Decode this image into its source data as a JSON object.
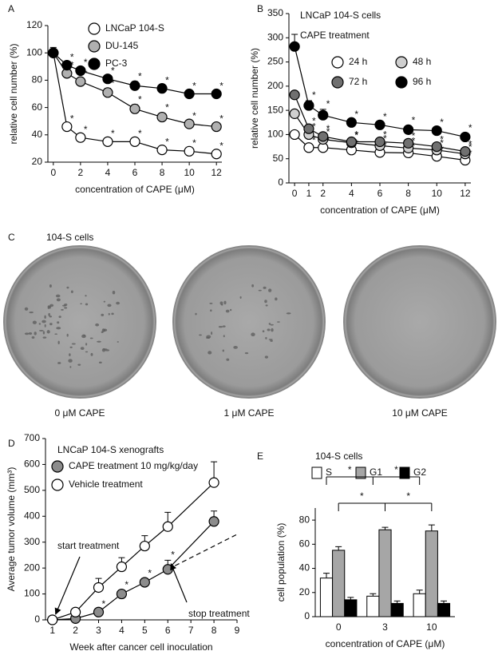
{
  "chart_data": [
    {
      "type": "line",
      "label": "A",
      "x": [
        0,
        1,
        2,
        4,
        6,
        8,
        10,
        12
      ],
      "xlim": [
        -0.4,
        12.4
      ],
      "xticks": [
        0,
        2,
        4,
        6,
        8,
        10,
        12
      ],
      "ylim": [
        20,
        120
      ],
      "yticks": [
        20,
        40,
        60,
        80,
        100,
        120
      ],
      "xlabel": "concentration of CAPE (μM)",
      "ylabel": "relative cell number (%)",
      "series": [
        {
          "name": "LNCaP 104-S",
          "color": "#ffffff",
          "values": [
            100,
            46,
            38,
            35,
            35,
            29,
            28,
            26
          ],
          "errors": [
            3,
            2,
            2,
            2,
            2,
            2,
            2,
            2
          ],
          "significance": [
            null,
            "*",
            "*",
            "*",
            "*",
            "*",
            "*",
            "*"
          ]
        },
        {
          "name": "DU-145",
          "color": "#b0b0b0",
          "values": [
            100,
            85,
            79,
            71,
            59,
            53,
            48,
            46
          ],
          "errors": [
            3,
            2,
            2,
            3,
            3,
            3,
            2,
            2
          ],
          "significance": [
            null,
            "*",
            "*",
            "*",
            "*",
            "*",
            "*",
            "*"
          ]
        },
        {
          "name": "PC-3",
          "color": "#000000",
          "values": [
            100,
            91,
            87,
            81,
            76,
            74,
            70,
            70
          ],
          "errors": [
            4,
            2,
            2,
            2,
            3,
            2,
            2,
            2
          ],
          "significance": [
            null,
            "*",
            "*",
            "*",
            "*",
            "*",
            "*",
            "*"
          ]
        }
      ]
    },
    {
      "type": "line",
      "label": "B",
      "title": "LNCaP 104-S cells",
      "subtitle": "CAPE treatment",
      "x": [
        0,
        1,
        2,
        4,
        6,
        8,
        10,
        12
      ],
      "xlim": [
        -0.4,
        12.4
      ],
      "xticks": [
        0,
        1,
        2,
        4,
        6,
        8,
        10,
        12
      ],
      "ylim": [
        0,
        350
      ],
      "yticks": [
        0,
        50,
        100,
        150,
        200,
        250,
        300,
        350
      ],
      "xlabel": "concentration of CAPE (μM)",
      "ylabel": "relative cell number (%)",
      "series": [
        {
          "name": "24 h",
          "color": "#ffffff",
          "values": [
            100,
            73,
            73,
            68,
            63,
            62,
            55,
            47
          ],
          "errors": [
            5,
            4,
            4,
            3,
            3,
            3,
            3,
            3
          ],
          "significance": [
            null,
            "*",
            "*",
            "*",
            "*",
            "*",
            "*",
            "*"
          ]
        },
        {
          "name": "48 h",
          "color": "#cfcfcf",
          "values": [
            143,
            100,
            90,
            83,
            77,
            72,
            68,
            60
          ],
          "errors": [
            6,
            5,
            4,
            4,
            3,
            3,
            3,
            3
          ],
          "significance": [
            null,
            "*",
            "*",
            "*",
            "*",
            "*",
            "*",
            "*"
          ]
        },
        {
          "name": "72 h",
          "color": "#707070",
          "values": [
            182,
            112,
            96,
            85,
            85,
            82,
            75,
            65
          ],
          "errors": [
            8,
            5,
            5,
            4,
            4,
            4,
            4,
            4
          ],
          "significance": [
            null,
            "*",
            "*",
            "*",
            "*",
            "*",
            "*",
            "*"
          ]
        },
        {
          "name": "96 h",
          "color": "#000000",
          "values": [
            282,
            160,
            140,
            125,
            120,
            110,
            108,
            95
          ],
          "errors": [
            25,
            10,
            12,
            6,
            6,
            8,
            6,
            8
          ],
          "significance": [
            null,
            "*",
            "*",
            "*",
            "*",
            "*",
            "*",
            "*"
          ]
        }
      ]
    },
    {
      "type": "line",
      "label": "D",
      "title": "LNCaP 104-S xenografts",
      "x": [
        1,
        2,
        3,
        4,
        5,
        6,
        8
      ],
      "xlim": [
        0.7,
        9
      ],
      "xticks": [
        1,
        2,
        3,
        4,
        5,
        6,
        7,
        8,
        9
      ],
      "ylim": [
        0,
        700
      ],
      "yticks": [
        0,
        100,
        200,
        300,
        400,
        500,
        600,
        700
      ],
      "xlabel": "Week after cancer cell inoculation",
      "ylabel": "Average tumor volume (mm³)",
      "series": [
        {
          "name": "CAPE treatment 10 mg/kg/day",
          "color": "#8c8c8c",
          "values": [
            0,
            5,
            30,
            100,
            145,
            195,
            380
          ],
          "errors": [
            0,
            5,
            10,
            15,
            15,
            35,
            40
          ],
          "significance": [
            null,
            null,
            "*",
            "*",
            "*",
            "*",
            null
          ]
        },
        {
          "name": "Vehicle treatment",
          "color": "#ffffff",
          "values": [
            0,
            30,
            125,
            205,
            285,
            360,
            530
          ],
          "errors": [
            0,
            10,
            35,
            35,
            40,
            55,
            80
          ],
          "significance": [
            null,
            null,
            null,
            null,
            null,
            null,
            null
          ]
        }
      ],
      "projection": {
        "x": [
          6,
          9
        ],
        "values": [
          195,
          330
        ]
      },
      "annotations": [
        {
          "text": "start treatment",
          "x": 1,
          "y": 0
        },
        {
          "text": "stop treatment",
          "x": 6,
          "y": 195
        }
      ]
    },
    {
      "type": "bar",
      "label": "E",
      "title": "104-S cells",
      "categories": [
        "0",
        "3",
        "10"
      ],
      "ylim": [
        0,
        90
      ],
      "yticks": [
        0,
        20,
        40,
        60,
        80
      ],
      "xlabel": "concentration of CAPE (μM)",
      "ylabel": "cell population (%)",
      "series": [
        {
          "name": "S",
          "color": "#ffffff",
          "values": [
            32,
            17,
            19
          ],
          "errors": [
            4,
            2,
            3
          ]
        },
        {
          "name": "G1",
          "color": "#a6a6a6",
          "values": [
            55,
            72,
            71
          ],
          "errors": [
            3,
            2,
            5
          ]
        },
        {
          "name": "G2",
          "color": "#000000",
          "values": [
            14,
            11,
            11
          ],
          "errors": [
            2,
            2,
            2
          ]
        }
      ],
      "comparisons": [
        {
          "series": 0,
          "label": "*"
        },
        {
          "series": 1,
          "label": "*"
        }
      ]
    }
  ],
  "panel_c": {
    "label": "C",
    "title": "104-S cells",
    "dishes": [
      "0 μM CAPE",
      "1 μM CAPE",
      "10 μM CAPE"
    ]
  }
}
